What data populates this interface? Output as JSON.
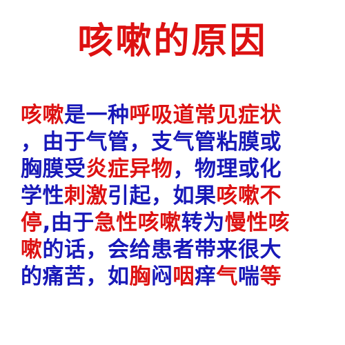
{
  "colors": {
    "red": "#dd1111",
    "blue": "#1818b8"
  },
  "title": {
    "text": "咳嗽的原因",
    "color": "red"
  },
  "lines": [
    [
      {
        "text": "咳嗽",
        "color": "red"
      },
      {
        "text": "是一种",
        "color": "blue"
      },
      {
        "text": "呼吸道常见症状",
        "color": "red"
      }
    ],
    [
      {
        "text": "，由于气管，支气管粘膜或",
        "color": "blue"
      }
    ],
    [
      {
        "text": "胸膜受",
        "color": "blue"
      },
      {
        "text": "炎症异物",
        "color": "red"
      },
      {
        "text": "，物理或化",
        "color": "blue"
      }
    ],
    [
      {
        "text": "学性",
        "color": "blue"
      },
      {
        "text": "刺激",
        "color": "red"
      },
      {
        "text": "引起，如果",
        "color": "blue"
      },
      {
        "text": "咳嗽不",
        "color": "red"
      }
    ],
    [
      {
        "text": "停",
        "color": "red"
      },
      {
        "text": ",由于",
        "color": "blue"
      },
      {
        "text": "急性咳嗽",
        "color": "red"
      },
      {
        "text": "转为",
        "color": "blue"
      },
      {
        "text": "慢性咳",
        "color": "red"
      }
    ],
    [
      {
        "text": "嗽",
        "color": "red"
      },
      {
        "text": "的话，会给患者带来很大",
        "color": "blue"
      }
    ],
    [
      {
        "text": "的痛苦，如",
        "color": "blue"
      },
      {
        "text": "胸",
        "color": "red"
      },
      {
        "text": "闷",
        "color": "blue"
      },
      {
        "text": "咽",
        "color": "red"
      },
      {
        "text": "痒",
        "color": "blue"
      },
      {
        "text": "气",
        "color": "red"
      },
      {
        "text": "喘",
        "color": "blue"
      },
      {
        "text": "等",
        "color": "red"
      }
    ]
  ]
}
